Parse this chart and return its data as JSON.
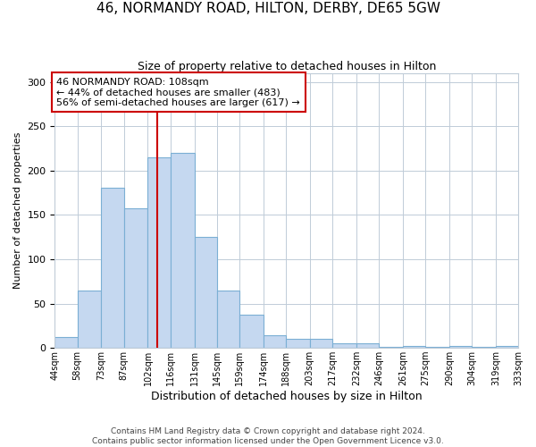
{
  "title": "46, NORMANDY ROAD, HILTON, DERBY, DE65 5GW",
  "subtitle": "Size of property relative to detached houses in Hilton",
  "xlabel": "Distribution of detached houses by size in Hilton",
  "ylabel": "Number of detached properties",
  "footer_line1": "Contains HM Land Registry data © Crown copyright and database right 2024.",
  "footer_line2": "Contains public sector information licensed under the Open Government Licence v3.0.",
  "bin_labels": [
    "44sqm",
    "58sqm",
    "73sqm",
    "87sqm",
    "102sqm",
    "116sqm",
    "131sqm",
    "145sqm",
    "159sqm",
    "174sqm",
    "188sqm",
    "203sqm",
    "217sqm",
    "232sqm",
    "246sqm",
    "261sqm",
    "275sqm",
    "290sqm",
    "304sqm",
    "319sqm",
    "333sqm"
  ],
  "bin_edges": [
    44,
    58,
    73,
    87,
    102,
    116,
    131,
    145,
    159,
    174,
    188,
    203,
    217,
    232,
    246,
    261,
    275,
    290,
    304,
    319,
    333
  ],
  "bar_heights": [
    12,
    65,
    181,
    157,
    215,
    220,
    125,
    65,
    37,
    14,
    10,
    10,
    5,
    5,
    1,
    2,
    1,
    2,
    1,
    2
  ],
  "bar_color": "#c5d8f0",
  "bar_edge_color": "#7bafd4",
  "property_size": 108,
  "vline_color": "#cc0000",
  "annotation_line1": "46 NORMANDY ROAD: 108sqm",
  "annotation_line2": "← 44% of detached houses are smaller (483)",
  "annotation_line3": "56% of semi-detached houses are larger (617) →",
  "annotation_box_color": "#cc0000",
  "ylim": [
    0,
    310
  ],
  "yticks": [
    0,
    50,
    100,
    150,
    200,
    250,
    300
  ],
  "background_color": "#ffffff",
  "grid_color": "#c0ccd8"
}
